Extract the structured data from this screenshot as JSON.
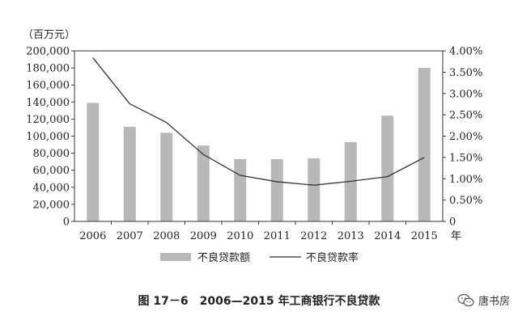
{
  "chart_data": {
    "type": "bar+line",
    "categories": [
      "2006",
      "2007",
      "2008",
      "2009",
      "2010",
      "2011",
      "2012",
      "2013",
      "2014",
      "2015"
    ],
    "series": [
      {
        "name": "不良贷款额",
        "type": "bar",
        "axis": "left",
        "values": [
          139000,
          111000,
          104000,
          89000,
          73000,
          73000,
          74000,
          93000,
          124000,
          180000
        ]
      },
      {
        "name": "不良贷款率",
        "type": "line",
        "axis": "right",
        "values": [
          3.84,
          2.76,
          2.32,
          1.57,
          1.08,
          0.93,
          0.85,
          0.94,
          1.05,
          1.5
        ]
      }
    ],
    "y_left": {
      "unit": "（百万元）",
      "min": 0,
      "max": 200000,
      "step": 20000,
      "ticks": [
        "0",
        "20,000",
        "40,000",
        "60,000",
        "80,000",
        "100,000",
        "120,000",
        "140,000",
        "160,000",
        "180,000",
        "200,000"
      ]
    },
    "y_right": {
      "min": 0,
      "max": 4,
      "step": 0.5,
      "ticks": [
        "0",
        "0.50%",
        "1.00%",
        "1.50%",
        "2.00%",
        "2.50%",
        "3.00%",
        "3.50%",
        "4.00%"
      ]
    },
    "x_unit": "年",
    "legend_position": "bottom",
    "grid": false,
    "colors": {
      "bar": "#b8b8b8",
      "line": "#333333",
      "axis": "#333333"
    }
  },
  "caption": "图 17－6　2006—2015 年工商银行不良贷款",
  "watermark": {
    "text": "唐书房",
    "icon": "wechat-icon"
  }
}
